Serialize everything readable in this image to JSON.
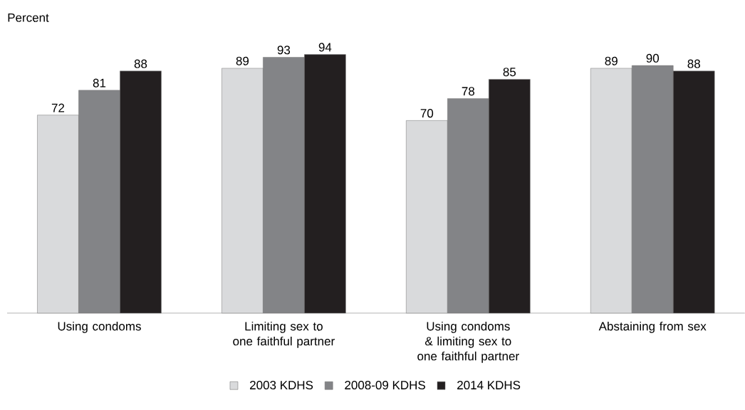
{
  "chart_data": {
    "type": "bar",
    "ylabel": "Percent",
    "categories": [
      "Using condoms",
      "Limiting sex to one faithful partner",
      "Using condoms & limiting sex to one faithful partner",
      "Abstaining from sex"
    ],
    "series": [
      {
        "name": "2003 KDHS",
        "color": "#d9dadc",
        "values": [
          72,
          89,
          70,
          89
        ]
      },
      {
        "name": "2008-09 KDHS",
        "color": "#838487",
        "values": [
          81,
          93,
          78,
          90
        ]
      },
      {
        "name": "2014 KDHS",
        "color": "#231f20",
        "values": [
          88,
          94,
          85,
          88
        ]
      }
    ],
    "data_labels": true,
    "legend": "bottom"
  }
}
